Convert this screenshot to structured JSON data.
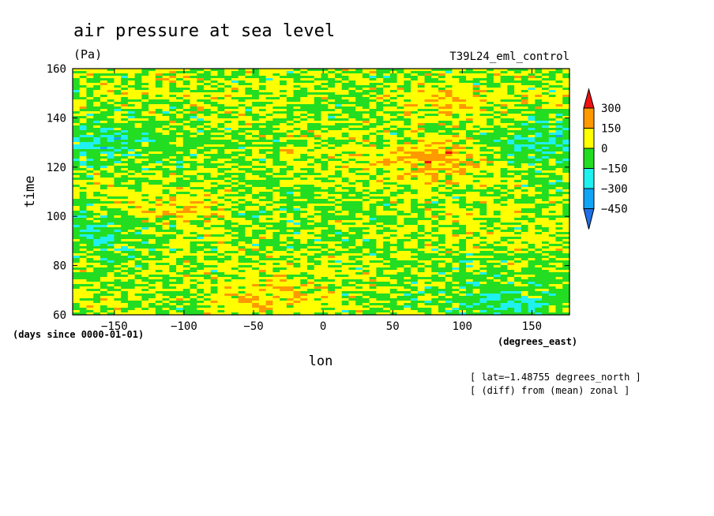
{
  "chart_data": {
    "type": "heatmap",
    "title": "air pressure at sea level",
    "units": "(Pa)",
    "run_label": "T39L24_eml_control",
    "xlabel": "lon",
    "ylabel": "time",
    "x_units": "(degrees_east)",
    "y_units": "(days since 0000-01-01)",
    "xlim": [
      -180,
      177
    ],
    "ylim": [
      60,
      160
    ],
    "x_ticks": [
      -150,
      -100,
      -50,
      0,
      50,
      100,
      150
    ],
    "x_tick_labels": [
      "−150",
      "−100",
      "−50",
      "0",
      "50",
      "100",
      "150"
    ],
    "y_ticks": [
      60,
      80,
      100,
      120,
      140,
      160
    ],
    "y_tick_labels": [
      "60",
      "80",
      "100",
      "120",
      "140",
      "160"
    ],
    "notes": [
      "[ lat=−1.48755 degrees_north ]",
      "[ (diff) from (mean) zonal ]"
    ],
    "colorbar": {
      "levels": [
        -450,
        -300,
        -150,
        0,
        150,
        300
      ],
      "labels": [
        "300",
        "150",
        "0",
        "−150",
        "−300",
        "−450"
      ],
      "colors": [
        "#1f6fe6",
        "#12a4f5",
        "#1ff0f0",
        "#22dd22",
        "#ffff00",
        "#ff9900",
        "#ee1111"
      ]
    },
    "grid": false,
    "features": [
      {
        "name": "positive anomaly",
        "lon_center": 85,
        "time_center": 122,
        "value": 180
      },
      {
        "name": "positive anomaly",
        "lon_center": 80,
        "time_center": 146,
        "value": 140
      },
      {
        "name": "positive anomaly",
        "lon_center": -40,
        "time_center": 64,
        "value": 140
      },
      {
        "name": "positive anomaly",
        "lon_center": -95,
        "time_center": 103,
        "value": 110
      },
      {
        "name": "negative anomaly",
        "lon_center": 160,
        "time_center": 132,
        "value": -170
      },
      {
        "name": "negative anomaly",
        "lon_center": -170,
        "time_center": 130,
        "value": -150
      },
      {
        "name": "negative anomaly",
        "lon_center": 140,
        "time_center": 62,
        "value": -150
      },
      {
        "name": "negative anomaly",
        "lon_center": -160,
        "time_center": 96,
        "value": -120
      }
    ]
  }
}
